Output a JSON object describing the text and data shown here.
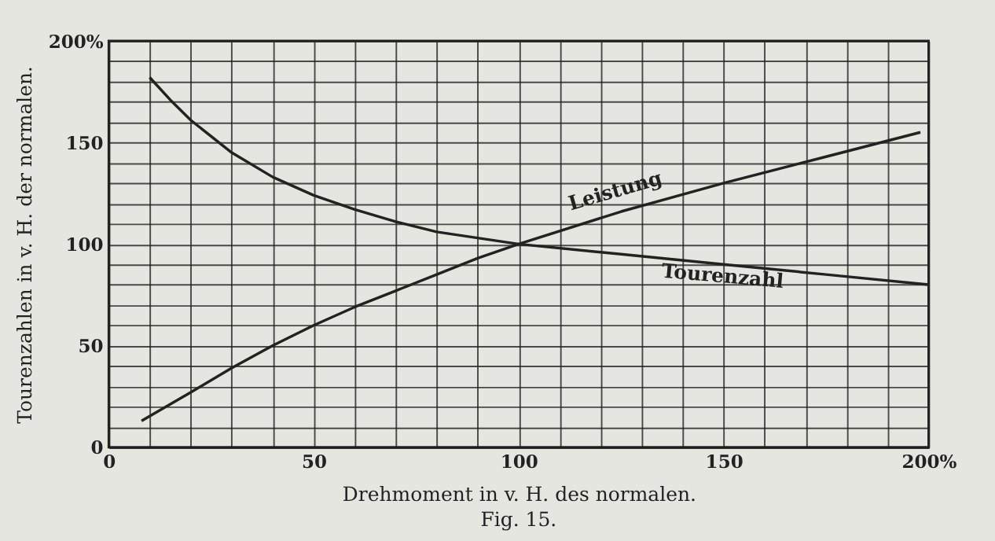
{
  "chart_data": {
    "type": "line",
    "xlabel": "Drehmoment in v. H. des normalen.",
    "ylabel": "Tourenzahlen in v. H. der normalen.",
    "annotations": [
      "Fig. 15."
    ],
    "series": [
      {
        "name": "Leistung",
        "color": "#222222",
        "x": [
          8,
          20,
          30,
          40,
          50,
          60,
          70,
          80,
          90,
          100,
          125,
          150,
          175,
          198
        ],
        "values": [
          13,
          27,
          39,
          50,
          60,
          69,
          77,
          85,
          93,
          100,
          116,
          130,
          143,
          155
        ]
      },
      {
        "name": "Tourenzahl",
        "color": "#222222",
        "x": [
          10,
          15,
          20,
          30,
          40,
          50,
          60,
          70,
          80,
          90,
          100,
          125,
          150,
          175,
          200
        ],
        "values": [
          182,
          171,
          161,
          145,
          133,
          124,
          117,
          111,
          106,
          103,
          100,
          95,
          90,
          85,
          80
        ]
      }
    ],
    "xlim": [
      0,
      200
    ],
    "ylim": [
      0,
      200
    ],
    "xticks": [
      0,
      {
        "value": 10,
        "label": null
      },
      {
        "value": 20,
        "label": null
      },
      {
        "value": 30,
        "label": null
      },
      {
        "value": 40,
        "label": null
      },
      50,
      {
        "value": 60,
        "label": null
      },
      {
        "value": 70,
        "label": null
      },
      {
        "value": 80,
        "label": null
      },
      {
        "value": 90,
        "label": null
      },
      100,
      {
        "value": 110,
        "label": null
      },
      {
        "value": 120,
        "label": null
      },
      {
        "value": 130,
        "label": null
      },
      {
        "value": 140,
        "label": null
      },
      150,
      {
        "value": 160,
        "label": null
      },
      {
        "value": 170,
        "label": null
      },
      {
        "value": 180,
        "label": null
      },
      {
        "value": 190,
        "label": null
      },
      {
        "value": 200,
        "label": "200%"
      }
    ],
    "yticks": [
      0,
      {
        "value": 10,
        "label": null
      },
      {
        "value": 20,
        "label": null
      },
      {
        "value": 30,
        "label": null
      },
      {
        "value": 40,
        "label": null
      },
      50,
      {
        "value": 60,
        "label": null
      },
      {
        "value": 70,
        "label": null
      },
      {
        "value": 80,
        "label": null
      },
      {
        "value": 90,
        "label": null
      },
      100,
      {
        "value": 110,
        "label": null
      },
      {
        "value": 120,
        "label": null
      },
      {
        "value": 130,
        "label": null
      },
      {
        "value": 140,
        "label": null
      },
      150,
      {
        "value": 160,
        "label": null
      },
      {
        "value": 170,
        "label": null
      },
      {
        "value": 180,
        "label": null
      },
      {
        "value": 190,
        "label": null
      },
      {
        "value": 200,
        "label": "200%"
      }
    ],
    "grid": true,
    "legend": false,
    "marker": "none",
    "line_style": "solid"
  }
}
